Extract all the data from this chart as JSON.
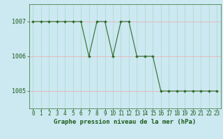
{
  "hours": [
    0,
    1,
    2,
    3,
    4,
    5,
    6,
    7,
    8,
    9,
    10,
    11,
    12,
    13,
    14,
    15,
    16,
    17,
    18,
    19,
    20,
    21,
    22,
    23
  ],
  "pressure": [
    1007,
    1007,
    1007,
    1007,
    1007,
    1007,
    1007,
    1006,
    1007,
    1007,
    1006,
    1007,
    1007,
    1006,
    1006,
    1006,
    1005,
    1005,
    1005,
    1005,
    1005,
    1005,
    1005,
    1005
  ],
  "ylim": [
    1004.5,
    1007.5
  ],
  "yticks": [
    1005,
    1006,
    1007
  ],
  "xlim": [
    -0.5,
    23.5
  ],
  "line_color": "#2d6e2d",
  "marker": "D",
  "marker_size": 2.0,
  "bg_color": "#cce8f0",
  "grid_color_x": "#aad8cc",
  "grid_color_y": "#f0aaaa",
  "xlabel": "Graphe pression niveau de la mer (hPa)",
  "xlabel_color": "#1a5c1a",
  "tick_color": "#1a5c1a",
  "tick_fontsize": 5.5,
  "ylabel_fontsize": 6,
  "xlabel_fontsize": 6.5
}
